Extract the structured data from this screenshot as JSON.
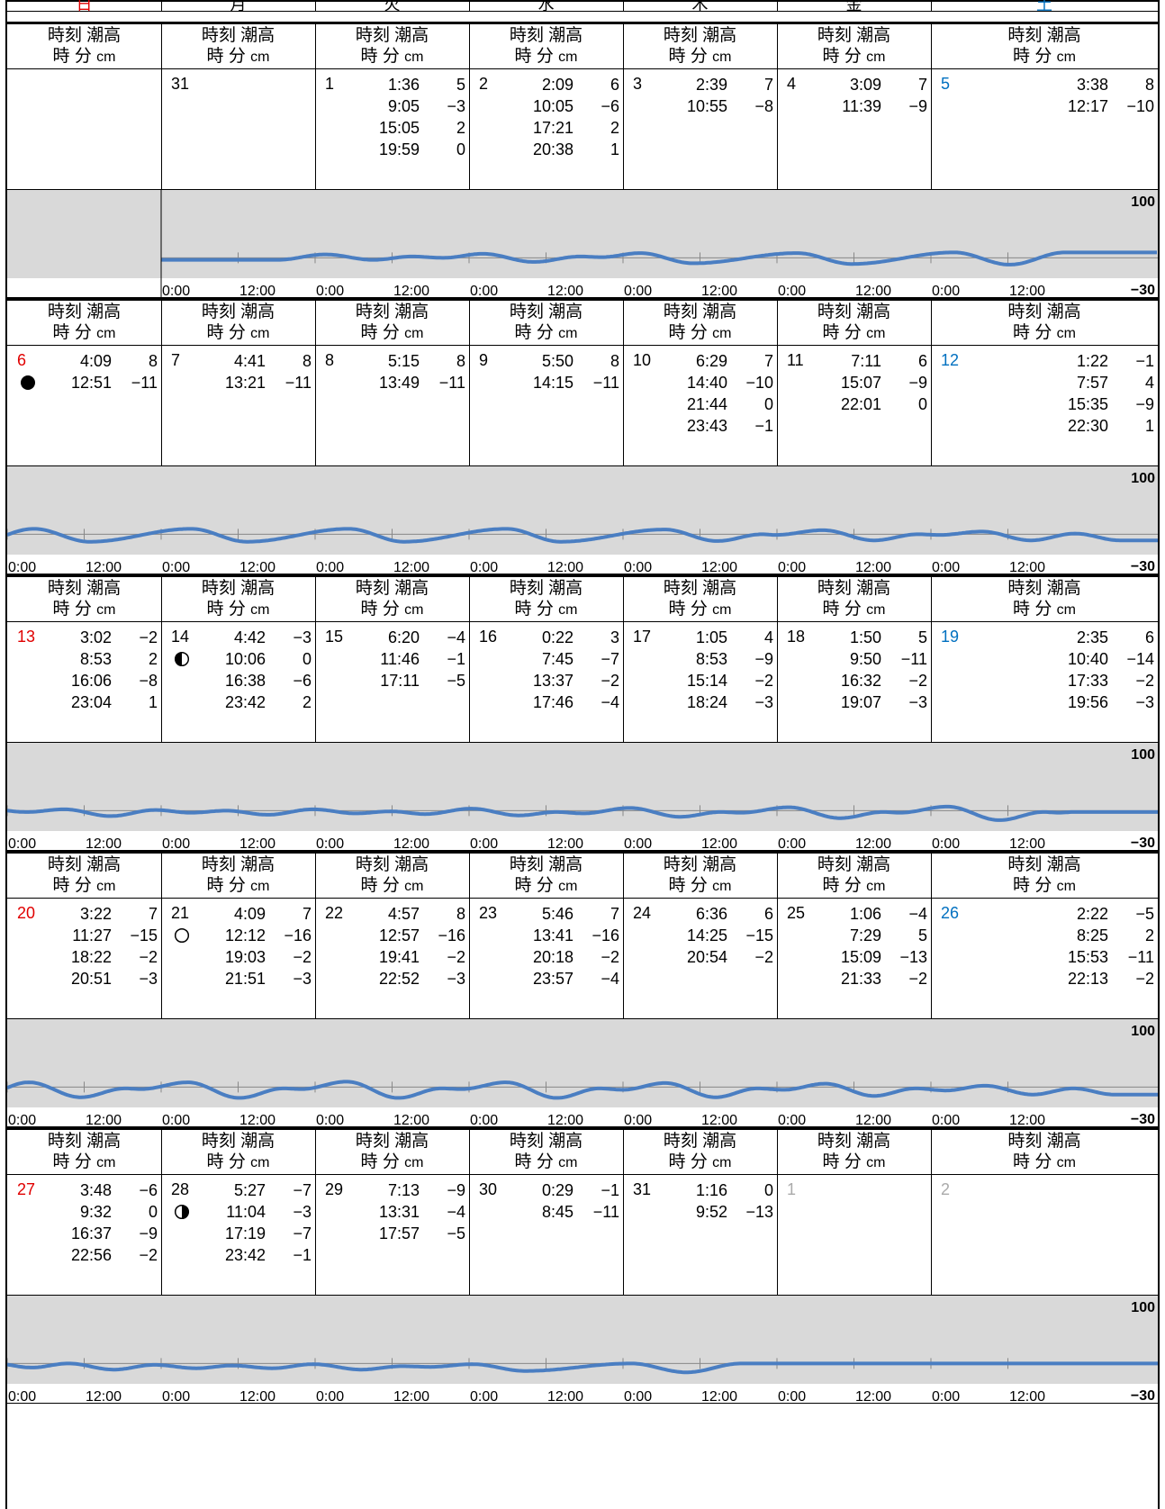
{
  "weekdays": [
    {
      "label": "日",
      "color": "red"
    },
    {
      "label": "月",
      "color": "black"
    },
    {
      "label": "火",
      "color": "black"
    },
    {
      "label": "水",
      "color": "black"
    },
    {
      "label": "木",
      "color": "black"
    },
    {
      "label": "金",
      "color": "black"
    },
    {
      "label": "土",
      "color": "blue"
    }
  ],
  "header_labels": {
    "line1": "時刻 潮高",
    "line2_time": "時 分",
    "line2_unit": "cm"
  },
  "chart_labels": {
    "max": "100",
    "min": "−30",
    "time_start": "0:00",
    "time_noon": "12:00"
  },
  "chart_data": {
    "type": "line",
    "ylim": [
      -30,
      100
    ],
    "x_ticks": [
      "0:00",
      "12:00"
    ]
  },
  "weeks": [
    {
      "days": [
        {
          "day": "",
          "tides": []
        },
        {
          "day": "31",
          "tides": []
        },
        {
          "day": "1",
          "tides": [
            {
              "time": "1:36",
              "height": "5"
            },
            {
              "time": "9:05",
              "height": "−3"
            },
            {
              "time": "15:05",
              "height": "2"
            },
            {
              "time": "19:59",
              "height": "0"
            }
          ]
        },
        {
          "day": "2",
          "tides": [
            {
              "time": "2:09",
              "height": "6"
            },
            {
              "time": "10:05",
              "height": "−6"
            },
            {
              "time": "17:21",
              "height": "2"
            },
            {
              "time": "20:38",
              "height": "1"
            }
          ]
        },
        {
          "day": "3",
          "tides": [
            {
              "time": "2:39",
              "height": "7"
            },
            {
              "time": "10:55",
              "height": "−8"
            }
          ]
        },
        {
          "day": "4",
          "tides": [
            {
              "time": "3:09",
              "height": "7"
            },
            {
              "time": "11:39",
              "height": "−9"
            }
          ]
        },
        {
          "day": "5",
          "tides": [
            {
              "time": "3:38",
              "height": "8"
            },
            {
              "time": "12:17",
              "height": "−10"
            }
          ]
        }
      ]
    },
    {
      "days": [
        {
          "day": "6",
          "moon": "new",
          "tides": [
            {
              "time": "4:09",
              "height": "8"
            },
            {
              "time": "12:51",
              "height": "−11"
            }
          ]
        },
        {
          "day": "7",
          "tides": [
            {
              "time": "4:41",
              "height": "8"
            },
            {
              "time": "13:21",
              "height": "−11"
            }
          ]
        },
        {
          "day": "8",
          "tides": [
            {
              "time": "5:15",
              "height": "8"
            },
            {
              "time": "13:49",
              "height": "−11"
            }
          ]
        },
        {
          "day": "9",
          "tides": [
            {
              "time": "5:50",
              "height": "8"
            },
            {
              "time": "14:15",
              "height": "−11"
            }
          ]
        },
        {
          "day": "10",
          "tides": [
            {
              "time": "6:29",
              "height": "7"
            },
            {
              "time": "14:40",
              "height": "−10"
            },
            {
              "time": "21:44",
              "height": "0"
            },
            {
              "time": "23:43",
              "height": "−1"
            }
          ]
        },
        {
          "day": "11",
          "tides": [
            {
              "time": "7:11",
              "height": "6"
            },
            {
              "time": "15:07",
              "height": "−9"
            },
            {
              "time": "22:01",
              "height": "0"
            }
          ]
        },
        {
          "day": "12",
          "tides": [
            {
              "time": "1:22",
              "height": "−1"
            },
            {
              "time": "7:57",
              "height": "4"
            },
            {
              "time": "15:35",
              "height": "−9"
            },
            {
              "time": "22:30",
              "height": "1"
            }
          ]
        }
      ]
    },
    {
      "days": [
        {
          "day": "13",
          "tides": [
            {
              "time": "3:02",
              "height": "−2"
            },
            {
              "time": "8:53",
              "height": "2"
            },
            {
              "time": "16:06",
              "height": "−8"
            },
            {
              "time": "23:04",
              "height": "1"
            }
          ]
        },
        {
          "day": "14",
          "moon": "first",
          "tides": [
            {
              "time": "4:42",
              "height": "−3"
            },
            {
              "time": "10:06",
              "height": "0"
            },
            {
              "time": "16:38",
              "height": "−6"
            },
            {
              "time": "23:42",
              "height": "2"
            }
          ]
        },
        {
          "day": "15",
          "tides": [
            {
              "time": "6:20",
              "height": "−4"
            },
            {
              "time": "11:46",
              "height": "−1"
            },
            {
              "time": "17:11",
              "height": "−5"
            }
          ]
        },
        {
          "day": "16",
          "tides": [
            {
              "time": "0:22",
              "height": "3"
            },
            {
              "time": "7:45",
              "height": "−7"
            },
            {
              "time": "13:37",
              "height": "−2"
            },
            {
              "time": "17:46",
              "height": "−4"
            }
          ]
        },
        {
          "day": "17",
          "tides": [
            {
              "time": "1:05",
              "height": "4"
            },
            {
              "time": "8:53",
              "height": "−9"
            },
            {
              "time": "15:14",
              "height": "−2"
            },
            {
              "time": "18:24",
              "height": "−3"
            }
          ]
        },
        {
          "day": "18",
          "tides": [
            {
              "time": "1:50",
              "height": "5"
            },
            {
              "time": "9:50",
              "height": "−11"
            },
            {
              "time": "16:32",
              "height": "−2"
            },
            {
              "time": "19:07",
              "height": "−3"
            }
          ]
        },
        {
          "day": "19",
          "tides": [
            {
              "time": "2:35",
              "height": "6"
            },
            {
              "time": "10:40",
              "height": "−14"
            },
            {
              "time": "17:33",
              "height": "−2"
            },
            {
              "time": "19:56",
              "height": "−3"
            }
          ]
        }
      ]
    },
    {
      "days": [
        {
          "day": "20",
          "tides": [
            {
              "time": "3:22",
              "height": "7"
            },
            {
              "time": "11:27",
              "height": "−15"
            },
            {
              "time": "18:22",
              "height": "−2"
            },
            {
              "time": "20:51",
              "height": "−3"
            }
          ]
        },
        {
          "day": "21",
          "moon": "full",
          "tides": [
            {
              "time": "4:09",
              "height": "7"
            },
            {
              "time": "12:12",
              "height": "−16"
            },
            {
              "time": "19:03",
              "height": "−2"
            },
            {
              "time": "21:51",
              "height": "−3"
            }
          ]
        },
        {
          "day": "22",
          "tides": [
            {
              "time": "4:57",
              "height": "8"
            },
            {
              "time": "12:57",
              "height": "−16"
            },
            {
              "time": "19:41",
              "height": "−2"
            },
            {
              "time": "22:52",
              "height": "−3"
            }
          ]
        },
        {
          "day": "23",
          "tides": [
            {
              "time": "5:46",
              "height": "7"
            },
            {
              "time": "13:41",
              "height": "−16"
            },
            {
              "time": "20:18",
              "height": "−2"
            },
            {
              "time": "23:57",
              "height": "−4"
            }
          ]
        },
        {
          "day": "24",
          "tides": [
            {
              "time": "6:36",
              "height": "6"
            },
            {
              "time": "14:25",
              "height": "−15"
            },
            {
              "time": "20:54",
              "height": "−2"
            }
          ]
        },
        {
          "day": "25",
          "tides": [
            {
              "time": "1:06",
              "height": "−4"
            },
            {
              "time": "7:29",
              "height": "5"
            },
            {
              "time": "15:09",
              "height": "−13"
            },
            {
              "time": "21:33",
              "height": "−2"
            }
          ]
        },
        {
          "day": "26",
          "tides": [
            {
              "time": "2:22",
              "height": "−5"
            },
            {
              "time": "8:25",
              "height": "2"
            },
            {
              "time": "15:53",
              "height": "−11"
            },
            {
              "time": "22:13",
              "height": "−2"
            }
          ]
        }
      ]
    },
    {
      "days": [
        {
          "day": "27",
          "tides": [
            {
              "time": "3:48",
              "height": "−6"
            },
            {
              "time": "9:32",
              "height": "0"
            },
            {
              "time": "16:37",
              "height": "−9"
            },
            {
              "time": "22:56",
              "height": "−2"
            }
          ]
        },
        {
          "day": "28",
          "moon": "last",
          "tides": [
            {
              "time": "5:27",
              "height": "−7"
            },
            {
              "time": "11:04",
              "height": "−3"
            },
            {
              "time": "17:19",
              "height": "−7"
            },
            {
              "time": "23:42",
              "height": "−1"
            }
          ]
        },
        {
          "day": "29",
          "tides": [
            {
              "time": "7:13",
              "height": "−9"
            },
            {
              "time": "13:31",
              "height": "−4"
            },
            {
              "time": "17:57",
              "height": "−5"
            }
          ]
        },
        {
          "day": "30",
          "tides": [
            {
              "time": "0:29",
              "height": "−1"
            },
            {
              "time": "8:45",
              "height": "−11"
            }
          ]
        },
        {
          "day": "31",
          "tides": [
            {
              "time": "1:16",
              "height": "0"
            },
            {
              "time": "9:52",
              "height": "−13"
            }
          ]
        },
        {
          "day": "1",
          "muted": true,
          "tides": []
        },
        {
          "day": "2",
          "muted": true,
          "tides": []
        }
      ]
    }
  ]
}
